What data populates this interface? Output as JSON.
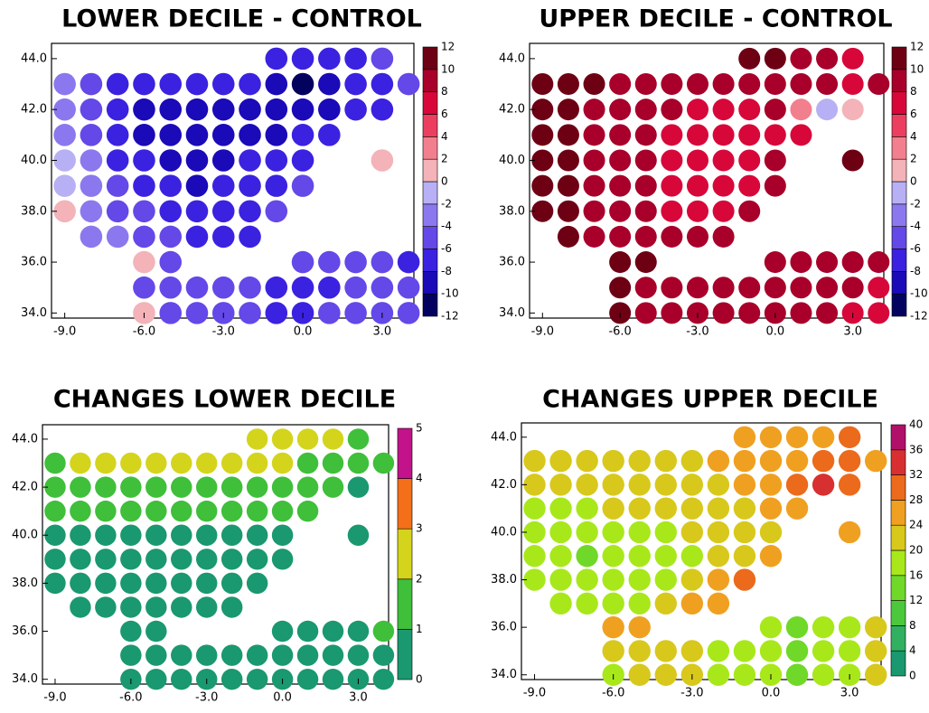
{
  "chart_data": [
    {
      "type": "dotmap",
      "title": "LOWER DECILE - CONTROL",
      "x": [
        -9,
        -8,
        -7,
        -6,
        -5,
        -4,
        -3,
        -2,
        -1,
        0,
        1,
        2,
        3,
        4
      ],
      "y": [
        44,
        43,
        42,
        41,
        40,
        39,
        38,
        37,
        36,
        35,
        34
      ],
      "xlim": [
        -9.5,
        4.2
      ],
      "ylim": [
        33.8,
        44.6
      ],
      "xticks": [
        {
          "value": -9,
          "label": "-9.0"
        },
        {
          "value": -6,
          "label": "-6.0"
        },
        {
          "value": -3,
          "label": "-3.0"
        },
        {
          "value": 0,
          "label": "0.0"
        },
        {
          "value": 3,
          "label": "3.0"
        }
      ],
      "yticks": [
        {
          "value": 34,
          "label": "34.0"
        },
        {
          "value": 36,
          "label": "36.0"
        },
        {
          "value": 38,
          "label": "38.0"
        },
        {
          "value": 40,
          "label": "40.0"
        },
        {
          "value": 42,
          "label": "42.0"
        },
        {
          "value": 44,
          "label": "44.0"
        }
      ],
      "values": [
        [
          null,
          null,
          null,
          null,
          null,
          null,
          null,
          null,
          -6,
          -7,
          -7,
          -6,
          -5,
          null
        ],
        [
          -3,
          -5,
          -6,
          -7,
          -7,
          -7,
          -7,
          -7,
          -8,
          -10,
          -9,
          -7,
          -6,
          -5
        ],
        [
          -3,
          -5,
          -7,
          -8,
          -8,
          -8,
          -8,
          -8,
          -8,
          -9,
          -8,
          -7,
          -6,
          null
        ],
        [
          -2,
          -4,
          -6,
          -8,
          -8,
          -9,
          -8,
          -8,
          -8,
          -7,
          -6,
          null,
          null,
          null
        ],
        [
          -1,
          -3,
          -6,
          -7,
          -8,
          -8,
          -8,
          -7,
          -7,
          -6,
          null,
          null,
          2,
          null
        ],
        [
          -1,
          -2,
          -5,
          -7,
          -7,
          -8,
          -7,
          -7,
          -6,
          -5,
          null,
          null,
          null,
          null
        ],
        [
          2,
          -2,
          -4,
          -5,
          -6,
          -7,
          -7,
          -6,
          -5,
          null,
          null,
          null,
          null,
          null
        ],
        [
          null,
          -2,
          -3,
          -4,
          -5,
          -6,
          -6,
          -6,
          null,
          null,
          null,
          null,
          null,
          null
        ],
        [
          null,
          null,
          null,
          2,
          -4,
          null,
          null,
          null,
          null,
          -5,
          -5,
          -5,
          -5,
          -6
        ],
        [
          null,
          null,
          null,
          -4,
          -4,
          -4,
          -5,
          -5,
          -6,
          -6,
          -6,
          -5,
          -5,
          -5
        ],
        [
          null,
          null,
          null,
          1,
          -4,
          -4,
          -5,
          -5,
          -6,
          -6,
          -5,
          -5,
          -5,
          -4
        ]
      ],
      "colorbar": {
        "ticks": [
          -12,
          -10,
          -8,
          -6,
          -4,
          -2,
          0,
          2,
          4,
          6,
          8,
          10,
          12
        ],
        "colors": [
          "#03035f",
          "#1a0ab8",
          "#3b22e0",
          "#6448e8",
          "#8b78ee",
          "#b8b0f4",
          "#f3b3b8",
          "#f27f8e",
          "#ec3f60",
          "#d8073a",
          "#a8002a",
          "#6e0014"
        ]
      }
    },
    {
      "type": "dotmap",
      "title": "UPPER DECILE - CONTROL",
      "x": [
        -9,
        -8,
        -7,
        -6,
        -5,
        -4,
        -3,
        -2,
        -1,
        0,
        1,
        2,
        3,
        4
      ],
      "y": [
        44,
        43,
        42,
        41,
        40,
        39,
        38,
        37,
        36,
        35,
        34
      ],
      "xlim": [
        -9.5,
        4.2
      ],
      "ylim": [
        33.8,
        44.6
      ],
      "xticks": [
        {
          "value": -9,
          "label": "-9.0"
        },
        {
          "value": -6,
          "label": "-6.0"
        },
        {
          "value": -3,
          "label": "-3.0"
        },
        {
          "value": 0,
          "label": "0.0"
        },
        {
          "value": 3,
          "label": "3.0"
        }
      ],
      "yticks": [
        {
          "value": 34,
          "label": "34.0"
        },
        {
          "value": 36,
          "label": "36.0"
        },
        {
          "value": 38,
          "label": "38.0"
        },
        {
          "value": 40,
          "label": "40.0"
        },
        {
          "value": 42,
          "label": "42.0"
        },
        {
          "value": 44,
          "label": "44.0"
        }
      ],
      "values": [
        [
          null,
          null,
          null,
          null,
          null,
          null,
          null,
          null,
          11,
          11,
          10,
          9,
          8,
          null
        ],
        [
          11,
          11,
          11,
          10,
          9,
          9,
          9,
          9,
          9,
          10,
          10,
          9,
          8,
          10
        ],
        [
          11,
          11,
          10,
          9,
          9,
          9,
          8,
          8,
          8,
          9,
          3,
          -1,
          2,
          null
        ],
        [
          11,
          11,
          10,
          9,
          9,
          8,
          8,
          8,
          8,
          8,
          8,
          null,
          null,
          null
        ],
        [
          12,
          11,
          10,
          9,
          9,
          8,
          8,
          8,
          8,
          9,
          null,
          null,
          11,
          null
        ],
        [
          12,
          11,
          10,
          9,
          9,
          8,
          8,
          8,
          8,
          9,
          null,
          null,
          null,
          null
        ],
        [
          12,
          11,
          10,
          9,
          9,
          8,
          8,
          8,
          9,
          null,
          null,
          null,
          null,
          null
        ],
        [
          null,
          11,
          10,
          9,
          9,
          9,
          9,
          10,
          null,
          null,
          null,
          null,
          null,
          null
        ],
        [
          null,
          null,
          null,
          11,
          11,
          null,
          null,
          null,
          null,
          10,
          10,
          10,
          10,
          9
        ],
        [
          null,
          null,
          null,
          11,
          10,
          10,
          9,
          9,
          9,
          9,
          9,
          9,
          9,
          8
        ],
        [
          null,
          null,
          null,
          11,
          10,
          10,
          9,
          9,
          9,
          9,
          9,
          9,
          8,
          8
        ]
      ],
      "colorbar": {
        "ticks": [
          -12,
          -10,
          -8,
          -6,
          -4,
          -2,
          0,
          2,
          4,
          6,
          8,
          10,
          12
        ],
        "colors": [
          "#03035f",
          "#1a0ab8",
          "#3b22e0",
          "#6448e8",
          "#8b78ee",
          "#b8b0f4",
          "#f3b3b8",
          "#f27f8e",
          "#ec3f60",
          "#d8073a",
          "#a8002a",
          "#6e0014"
        ]
      }
    },
    {
      "type": "dotmap",
      "title": "CHANGES LOWER DECILE",
      "x": [
        -9,
        -8,
        -7,
        -6,
        -5,
        -4,
        -3,
        -2,
        -1,
        0,
        1,
        2,
        3,
        4
      ],
      "y": [
        44,
        43,
        42,
        41,
        40,
        39,
        38,
        37,
        36,
        35,
        34
      ],
      "xlim": [
        -9.5,
        4.2
      ],
      "ylim": [
        33.8,
        44.6
      ],
      "xticks": [
        {
          "value": -9,
          "label": "-9.0"
        },
        {
          "value": -6,
          "label": "-6.0"
        },
        {
          "value": -3,
          "label": "-3.0"
        },
        {
          "value": 0,
          "label": "0.0"
        },
        {
          "value": 3,
          "label": "3.0"
        }
      ],
      "yticks": [
        {
          "value": 34,
          "label": "34.0"
        },
        {
          "value": 36,
          "label": "36.0"
        },
        {
          "value": 38,
          "label": "38.0"
        },
        {
          "value": 40,
          "label": "40.0"
        },
        {
          "value": 42,
          "label": "42.0"
        },
        {
          "value": 44,
          "label": "44.0"
        }
      ],
      "values": [
        [
          null,
          null,
          null,
          null,
          null,
          null,
          null,
          null,
          2.5,
          2.5,
          2.5,
          2.5,
          1.5,
          null
        ],
        [
          1.5,
          2.5,
          2.5,
          2.5,
          2.5,
          2.5,
          2.5,
          2.5,
          2.5,
          2.5,
          1.5,
          1.5,
          1.5,
          1.5
        ],
        [
          1.5,
          1.5,
          1.5,
          1.5,
          1.5,
          1.5,
          1.5,
          1.5,
          1.5,
          1.5,
          1.5,
          1.5,
          0.5,
          null
        ],
        [
          1.5,
          1.5,
          1.5,
          1.5,
          1.5,
          1.5,
          1.5,
          1.5,
          1.5,
          1.5,
          1.5,
          null,
          null,
          null
        ],
        [
          0.5,
          0.5,
          0.5,
          0.5,
          0.5,
          0.5,
          0.5,
          0.5,
          0.5,
          0.5,
          null,
          null,
          0.5,
          null
        ],
        [
          0.5,
          0.5,
          0.5,
          0.5,
          0.5,
          0.5,
          0.5,
          0.5,
          0.5,
          0.5,
          null,
          null,
          null,
          null
        ],
        [
          0.5,
          0.5,
          0.5,
          0.5,
          0.5,
          0.5,
          0.5,
          0.5,
          0.5,
          null,
          null,
          null,
          null,
          null
        ],
        [
          null,
          0.5,
          0.5,
          0.5,
          0.5,
          0.5,
          0.5,
          0.5,
          null,
          null,
          null,
          null,
          null,
          null
        ],
        [
          null,
          null,
          null,
          0.5,
          0.5,
          null,
          null,
          null,
          null,
          0.5,
          0.5,
          0.5,
          0.5,
          1.5
        ],
        [
          null,
          null,
          null,
          0.5,
          0.5,
          0.5,
          0.5,
          0.5,
          0.5,
          0.5,
          0.5,
          0.5,
          0.5,
          0.5
        ],
        [
          null,
          null,
          null,
          0.5,
          0.5,
          0.5,
          0.5,
          0.5,
          0.5,
          0.5,
          0.5,
          0.5,
          0.5,
          0.5
        ]
      ],
      "colorbar": {
        "ticks": [
          0,
          1,
          2,
          3,
          4,
          5
        ],
        "colors": [
          "#1a9870",
          "#3fbf3a",
          "#d4d41c",
          "#f36f1a",
          "#c2138a"
        ]
      }
    },
    {
      "type": "dotmap",
      "title": "CHANGES UPPER DECILE",
      "x": [
        -9,
        -8,
        -7,
        -6,
        -5,
        -4,
        -3,
        -2,
        -1,
        0,
        1,
        2,
        3,
        4
      ],
      "y": [
        44,
        43,
        42,
        41,
        40,
        39,
        38,
        37,
        36,
        35,
        34
      ],
      "xlim": [
        -9.5,
        4.2
      ],
      "ylim": [
        33.8,
        44.6
      ],
      "xticks": [
        {
          "value": -9,
          "label": "-9.0"
        },
        {
          "value": -6,
          "label": "-6.0"
        },
        {
          "value": -3,
          "label": "-3.0"
        },
        {
          "value": 0,
          "label": "0.0"
        },
        {
          "value": 3,
          "label": "3.0"
        }
      ],
      "yticks": [
        {
          "value": 34,
          "label": "34.0"
        },
        {
          "value": 36,
          "label": "36.0"
        },
        {
          "value": 38,
          "label": "38.0"
        },
        {
          "value": 40,
          "label": "40.0"
        },
        {
          "value": 42,
          "label": "42.0"
        },
        {
          "value": 44,
          "label": "44.0"
        }
      ],
      "values": [
        [
          null,
          null,
          null,
          null,
          null,
          null,
          null,
          null,
          26,
          26,
          26,
          28,
          30,
          null
        ],
        [
          22,
          22,
          22,
          22,
          22,
          22,
          24,
          26,
          26,
          26,
          28,
          30,
          30,
          28
        ],
        [
          22,
          22,
          22,
          22,
          22,
          22,
          24,
          24,
          26,
          26,
          30,
          34,
          30,
          null
        ],
        [
          20,
          20,
          20,
          22,
          22,
          22,
          22,
          24,
          24,
          26,
          28,
          null,
          null,
          null
        ],
        [
          18,
          18,
          18,
          20,
          20,
          20,
          22,
          22,
          22,
          24,
          null,
          null,
          26,
          null
        ],
        [
          18,
          18,
          16,
          18,
          18,
          18,
          20,
          22,
          24,
          26,
          null,
          null,
          null,
          null
        ],
        [
          20,
          18,
          18,
          18,
          18,
          18,
          24,
          28,
          30,
          null,
          null,
          null,
          null,
          null
        ],
        [
          null,
          20,
          18,
          18,
          18,
          22,
          26,
          28,
          null,
          null,
          null,
          null,
          null,
          null
        ],
        [
          null,
          null,
          null,
          26,
          26,
          null,
          null,
          null,
          null,
          18,
          16,
          18,
          20,
          22
        ],
        [
          null,
          null,
          null,
          22,
          24,
          24,
          22,
          20,
          18,
          18,
          16,
          18,
          20,
          22
        ],
        [
          null,
          null,
          null,
          20,
          22,
          22,
          22,
          20,
          18,
          18,
          16,
          18,
          20,
          22
        ]
      ],
      "colorbar": {
        "ticks": [
          0,
          4,
          8,
          12,
          16,
          20,
          24,
          28,
          32,
          36,
          40
        ],
        "colors": [
          "#1a9870",
          "#30b060",
          "#4cc83c",
          "#70d828",
          "#a8e81a",
          "#d8c81c",
          "#f0a020",
          "#ec6a1c",
          "#d83030",
          "#b0106a"
        ]
      }
    }
  ]
}
